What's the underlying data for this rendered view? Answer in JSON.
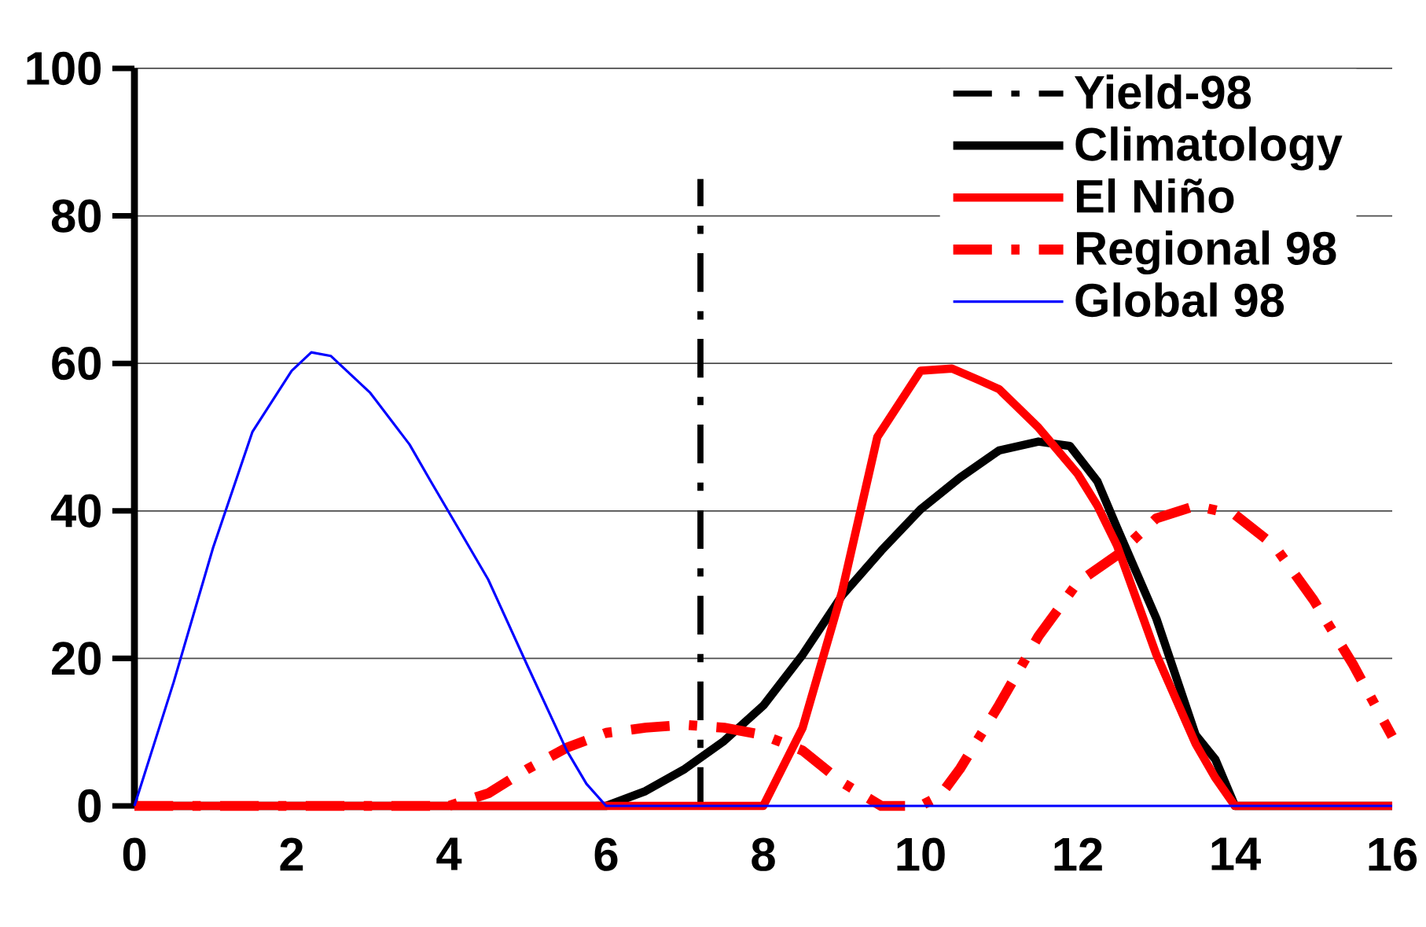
{
  "chart_data": {
    "type": "line",
    "xlim": [
      0,
      16
    ],
    "ylim": [
      0,
      100
    ],
    "xticks": [
      0,
      2,
      4,
      6,
      8,
      10,
      12,
      14,
      16
    ],
    "yticks": [
      0,
      20,
      40,
      60,
      80,
      100
    ],
    "grid": "y",
    "legend": "top right",
    "marker": "none",
    "series": [
      {
        "name": "Yield-98",
        "color": "#000000",
        "line_style": "dashed",
        "x": [
          7.2,
          7.2
        ],
        "values": [
          0,
          85
        ]
      },
      {
        "name": "Climatology",
        "color": "#000000",
        "line_style": "solid",
        "x": [
          0,
          6,
          6.5,
          7,
          7.5,
          8,
          8.5,
          9,
          9.5,
          10,
          10.5,
          11,
          11.5,
          11.9,
          12.25,
          12.5,
          13,
          13.5,
          13.75,
          14,
          16
        ],
        "values": [
          0,
          0,
          2,
          5,
          8.8,
          13.6,
          20.5,
          28.5,
          34.6,
          40.2,
          44.5,
          48.2,
          49.4,
          48.8,
          44,
          37.7,
          25.4,
          9.6,
          6.3,
          0,
          0
        ]
      },
      {
        "name": "El Niño",
        "color": "#ff0000",
        "line_style": "solid",
        "x": [
          0,
          8,
          8.5,
          9,
          9.45,
          10,
          10.4,
          10.75,
          11,
          11.5,
          12,
          12.25,
          12.5,
          13,
          13.5,
          13.75,
          14,
          16
        ],
        "values": [
          0,
          0,
          10.6,
          29,
          50,
          59,
          59.3,
          57.7,
          56.5,
          51.3,
          45,
          40.7,
          35.3,
          20.5,
          8.4,
          3.8,
          0,
          0
        ]
      },
      {
        "name": "Regional 98",
        "color": "#ff0000",
        "line_style": "dashed",
        "x": [
          0,
          4,
          4.5,
          5,
          5.5,
          6,
          6.5,
          7,
          7.5,
          8,
          8.5,
          9,
          9.5,
          10,
          10.25,
          10.5,
          11,
          11.5,
          12,
          12.5,
          13,
          13.5,
          14,
          14.5,
          15,
          15.5,
          16
        ],
        "values": [
          0,
          0,
          1.7,
          5,
          7.9,
          9.9,
          10.6,
          11,
          10.6,
          9.6,
          7.5,
          3.2,
          0,
          0,
          1.4,
          5,
          13.7,
          23,
          30.3,
          34,
          39,
          40.7,
          39.5,
          35.3,
          27.9,
          19.2,
          9.4
        ]
      },
      {
        "name": "Global 98",
        "color": "#0000ff",
        "line_style": "solid",
        "x": [
          0,
          0.5,
          1,
          1.5,
          2,
          2.25,
          2.5,
          3,
          3.5,
          3.77,
          4.1,
          4.5,
          5,
          5.5,
          5.75,
          6,
          16
        ],
        "values": [
          0,
          16.8,
          35,
          50.7,
          59,
          61.5,
          61,
          56,
          49,
          44,
          38,
          30.7,
          19,
          7.5,
          3,
          0,
          0
        ]
      }
    ]
  }
}
